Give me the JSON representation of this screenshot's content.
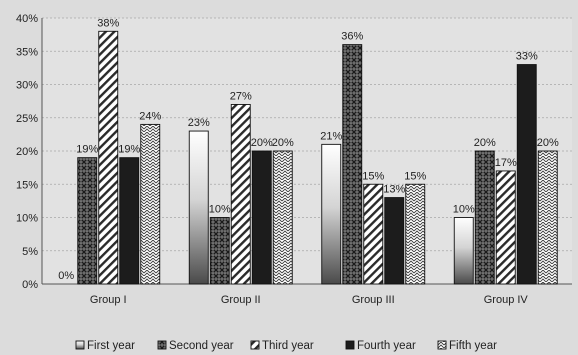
{
  "chart_data": {
    "type": "bar",
    "title": "",
    "xlabel": "",
    "ylabel": "",
    "ylim": [
      0,
      40
    ],
    "yticks": [
      "0%",
      "5%",
      "10%",
      "15%",
      "20%",
      "25%",
      "30%",
      "35%",
      "40%"
    ],
    "grid": true,
    "legend_position": "bottom",
    "categories": [
      "Group I",
      "Group II",
      "Group III",
      "Group IV"
    ],
    "series": [
      {
        "name": "First year",
        "values": [
          0,
          23,
          21,
          10
        ],
        "labels": [
          "0%",
          "23%",
          "21%",
          "10%"
        ],
        "pattern": "gradient"
      },
      {
        "name": "Second year",
        "values": [
          19,
          10,
          36,
          20
        ],
        "labels": [
          "19%",
          "10%",
          "36%",
          "20%"
        ],
        "pattern": "crosshatch"
      },
      {
        "name": "Third year",
        "values": [
          38,
          27,
          15,
          17
        ],
        "labels": [
          "38%",
          "27%",
          "15%",
          "17%"
        ],
        "pattern": "diagonal"
      },
      {
        "name": "Fourth year",
        "values": [
          19,
          20,
          13,
          33
        ],
        "labels": [
          "19%",
          "20%",
          "13%",
          "33%"
        ],
        "pattern": "solid-dark"
      },
      {
        "name": "Fifth year",
        "values": [
          24,
          20,
          15,
          20
        ],
        "labels": [
          "24%",
          "20%",
          "15%",
          "20%"
        ],
        "pattern": "zigzag"
      }
    ],
    "colors": {
      "background": "#dcdcdc",
      "plot_background": "#e2e2e2",
      "bar_dark": "#1c1c1c",
      "bar_light": "#ffffff"
    }
  }
}
